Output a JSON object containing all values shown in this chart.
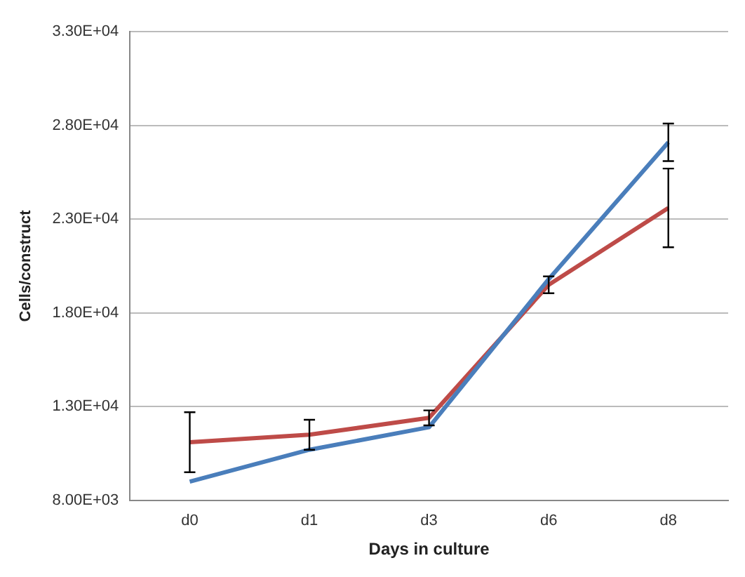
{
  "chart_data": {
    "type": "line",
    "xlabel": "Days in culture",
    "ylabel": "Cells/construct",
    "categories": [
      "d0",
      "d1",
      "d3",
      "d6",
      "d8"
    ],
    "series": [
      {
        "color": "#4a7ebb",
        "values": [
          9000,
          10700,
          11900,
          19800,
          27100
        ],
        "errors": [
          null,
          null,
          null,
          null,
          1000
        ]
      },
      {
        "color": "#be4b48",
        "values": [
          11100,
          11500,
          12400,
          19500,
          23600
        ],
        "errors": [
          1600,
          800,
          400,
          450,
          2100
        ]
      }
    ],
    "ylim": [
      8000,
      33000
    ],
    "yticks": [
      {
        "value": 8000,
        "label": "8.00E+03"
      },
      {
        "value": 13000,
        "label": "1.30E+04"
      },
      {
        "value": 18000,
        "label": "1.80E+04"
      },
      {
        "value": 23000,
        "label": "2.30E+04"
      },
      {
        "value": 28000,
        "label": "2.80E+04"
      },
      {
        "value": 33000,
        "label": "3.30E+04"
      }
    ],
    "grid": "y",
    "legend": false,
    "marker": "none",
    "line_style": "solid"
  }
}
